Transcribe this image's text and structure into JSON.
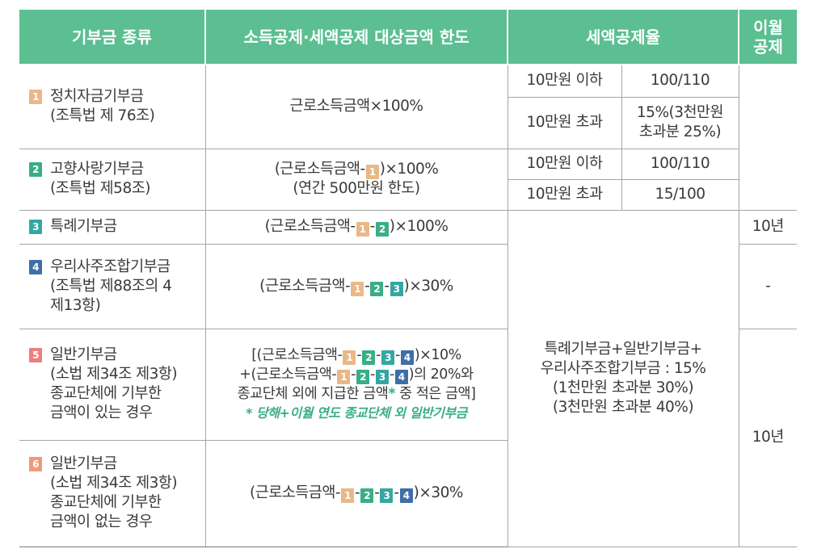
{
  "headers": {
    "kind": "기부금 종류",
    "limit": "소득공제·세액공제 대상금액 한도",
    "rate": "세액공제율",
    "carry": "이월\n공제"
  },
  "rows": [
    {
      "num": "1",
      "kind": "정치자금기부금\n(조특법 제 76조)",
      "limit": "근로소득금액×100%",
      "r1_cond": "10만원 이하",
      "r1_rate": "100/110",
      "r2_cond": "10만원 초과",
      "r2_rate": "15%(3천만원\n초과분 25%)"
    },
    {
      "num": "2",
      "kind": "고향사랑기부금\n(조특법 제58조)",
      "limit_a": "(근로소득금액-",
      "limit_b": ")×100%",
      "limit_c": "(연간 500만원 한도)",
      "r1_cond": "10만원 이하",
      "r1_rate": "100/110",
      "r2_cond": "10만원 초과",
      "r2_rate": "15/100"
    },
    {
      "num": "3",
      "kind": "특례기부금",
      "limit_a": "(근로소득금액-",
      "limit_b": ")×100%",
      "carry": "10년"
    },
    {
      "num": "4",
      "kind": "우리사주조합기부금\n(조특법 제88조의 4\n제13항)",
      "limit_a": "(근로소득금액-",
      "limit_b": ")×30%",
      "carry": "-"
    },
    {
      "num": "5",
      "kind": "일반기부금\n(소법 제34조 제3항)\n종교단체에 기부한\n금액이 있는 경우",
      "line1_a": "[(근로소득금액-",
      "line1_b": ")×10%",
      "line2_a": "+(근로소득금액-",
      "line2_b": ")의 20%와",
      "line3_a": "종교단체 외에 지급한 금액",
      "line3_star": "*",
      "line3_b": " 중 적은 금액]",
      "note": "* 당해+이월 연도 종교단체 외 일반기부금"
    },
    {
      "num": "6",
      "kind": "일반기부금\n(소법 제34조 제3항)\n종교단체에 기부한\n금액이 없는 경우",
      "limit_a": "(근로소득금액-",
      "limit_b": ")×30%"
    }
  ],
  "merged_rate": "특례기부금+일반기부금+\n우리사주조합기부금 : 15%\n(1천만원 초과분 30%)\n(3천만원 초과분 40%)",
  "carry_56": "10년",
  "badge_nums": [
    "1",
    "2",
    "3",
    "4"
  ],
  "colors": {
    "header": "#5bbf91",
    "b1": "#e9b887",
    "b2": "#3aae86",
    "b3": "#34a7a2",
    "b4": "#3e6fa7",
    "b5": "#ec7e7e",
    "b6": "#ef9a7c",
    "note": "#3aae86"
  }
}
